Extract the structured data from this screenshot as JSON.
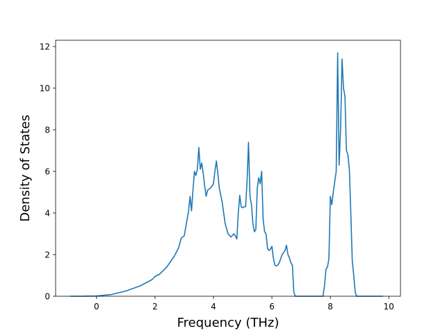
{
  "chart_data": {
    "type": "line",
    "title": "",
    "xlabel": "Frequency (THz)",
    "ylabel": "Density of States",
    "xlim": [
      -1.4,
      10.4
    ],
    "ylim": [
      0,
      12.3
    ],
    "xticks": [
      0,
      2,
      4,
      6,
      8,
      10
    ],
    "yticks": [
      0,
      2,
      4,
      6,
      8,
      10,
      12
    ],
    "grid": false,
    "legend": "none",
    "line_color": "#1f77b4",
    "series": [
      {
        "x": [
          -0.9,
          -0.5,
          0,
          0.5,
          1.0,
          1.5,
          1.9,
          2.0,
          2.15,
          2.4,
          2.65,
          2.8,
          2.9,
          3.0,
          3.05,
          3.1,
          3.15,
          3.2,
          3.25,
          3.3,
          3.35,
          3.4,
          3.45,
          3.5,
          3.55,
          3.6,
          3.65,
          3.7,
          3.75,
          3.8,
          3.9,
          4.0,
          4.05,
          4.1,
          4.15,
          4.2,
          4.3,
          4.4,
          4.5,
          4.6,
          4.7,
          4.75,
          4.8,
          4.85,
          4.9,
          4.95,
          5.0,
          5.05,
          5.1,
          5.15,
          5.2,
          5.25,
          5.3,
          5.35,
          5.4,
          5.45,
          5.5,
          5.55,
          5.6,
          5.65,
          5.7,
          5.75,
          5.8,
          5.85,
          5.9,
          5.95,
          6.0,
          6.05,
          6.1,
          6.15,
          6.2,
          6.25,
          6.3,
          6.35,
          6.4,
          6.45,
          6.5,
          6.55,
          6.6,
          6.65,
          6.7,
          6.75,
          6.8,
          6.85,
          6.9,
          6.95,
          7.0,
          7.1,
          7.5,
          7.75,
          7.8,
          7.85,
          7.9,
          7.95,
          8.0,
          8.05,
          8.1,
          8.15,
          8.2,
          8.25,
          8.3,
          8.35,
          8.4,
          8.45,
          8.5,
          8.55,
          8.6,
          8.65,
          8.7,
          8.75,
          8.8,
          8.85,
          8.9,
          8.95,
          9.0,
          9.5,
          9.8
        ],
        "y": [
          0,
          0,
          0.01,
          0.08,
          0.25,
          0.5,
          0.8,
          0.95,
          1.05,
          1.4,
          1.9,
          2.3,
          2.8,
          2.9,
          3.3,
          3.7,
          4.1,
          4.8,
          4.1,
          5.1,
          6.0,
          5.8,
          6.1,
          7.15,
          6.1,
          6.4,
          5.9,
          5.3,
          4.8,
          5.1,
          5.2,
          5.4,
          6.0,
          6.5,
          5.9,
          5.2,
          4.5,
          3.5,
          3.0,
          2.85,
          3.0,
          2.9,
          2.75,
          4.0,
          4.85,
          4.3,
          4.25,
          4.3,
          4.3,
          5.5,
          7.4,
          4.8,
          4.4,
          3.5,
          3.1,
          3.2,
          5.2,
          5.7,
          5.4,
          6.0,
          3.7,
          3.1,
          3.0,
          2.3,
          2.2,
          2.25,
          2.4,
          1.85,
          1.5,
          1.45,
          1.5,
          1.6,
          1.8,
          2.0,
          2.1,
          2.2,
          2.45,
          2.0,
          1.85,
          1.6,
          1.5,
          0.2,
          0,
          0,
          0,
          0,
          0,
          0,
          0,
          0,
          0.5,
          1.3,
          1.4,
          1.8,
          4.8,
          4.4,
          5.0,
          5.5,
          6.0,
          11.7,
          6.3,
          8.0,
          11.4,
          10.0,
          9.6,
          7.0,
          6.8,
          6.1,
          4.0,
          1.7,
          1.0,
          0.2,
          0,
          0,
          0,
          0,
          0
        ]
      }
    ]
  }
}
